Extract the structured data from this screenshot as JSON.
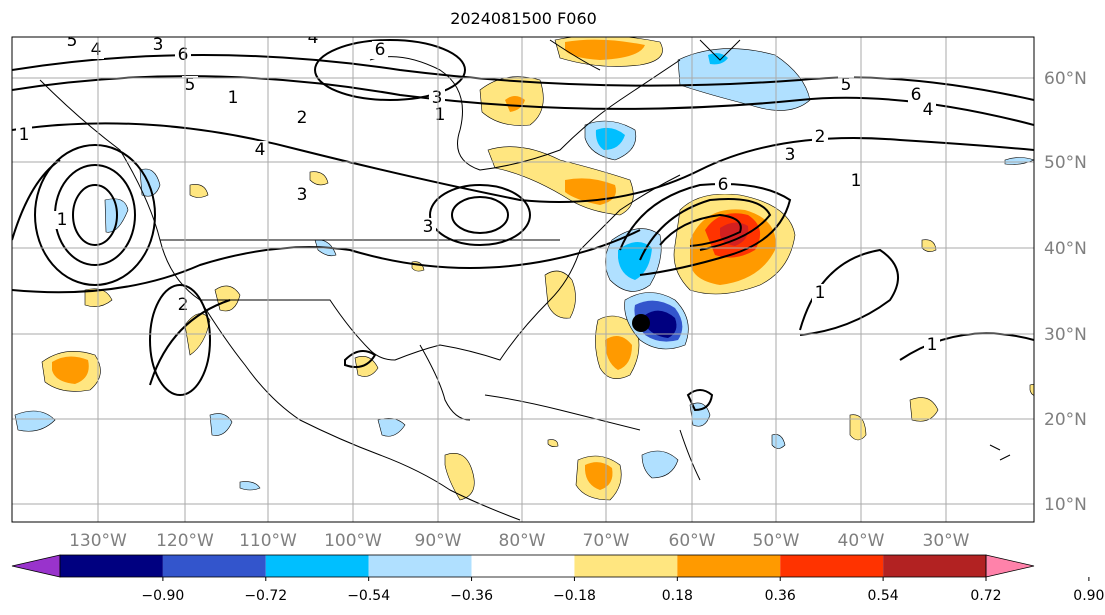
{
  "title": "2024081500 F060",
  "lon_labels": [
    "130°W",
    "120°W",
    "110°W",
    "100°W",
    "90°W",
    "80°W",
    "70°W",
    "60°W",
    "50°W",
    "40°W",
    "30°W"
  ],
  "lat_labels": [
    "60°N",
    "50°N",
    "40°N",
    "30°N",
    "20°N",
    "10°N"
  ],
  "colorbar": {
    "colors": [
      "#9933cc",
      "#000080",
      "#3355cc",
      "#00bfff",
      "#b0e0ff",
      "#ffffff",
      "#ffe680",
      "#ff9a00",
      "#ff3300",
      "#b22222",
      "#ff82aa"
    ],
    "tick_labels": [
      "−0.90",
      "−0.72",
      "−0.54",
      "−0.36",
      "−0.18",
      "0.18",
      "0.36",
      "0.54",
      "0.72",
      "0.90"
    ]
  },
  "contour_labels": [
    "5",
    "4",
    "3",
    "6",
    "4",
    "5",
    "1",
    "2",
    "4",
    "3",
    "1",
    "6",
    "5",
    "6",
    "4",
    "1",
    "3",
    "2",
    "3",
    "6",
    "1",
    "1",
    "1",
    "3",
    "2",
    "1"
  ],
  "storm_marker": "storm-center-dot"
}
